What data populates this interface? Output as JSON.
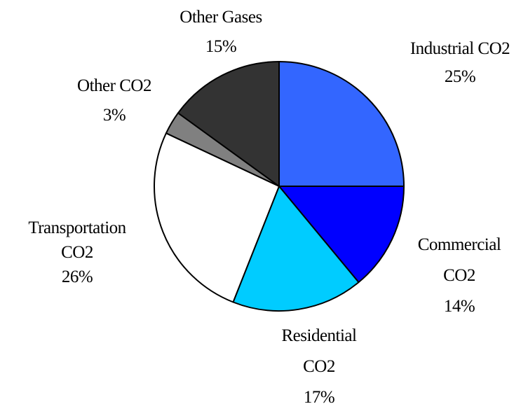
{
  "chart_data": {
    "type": "pie",
    "categories": [
      "Industrial CO2",
      "Commercial CO2",
      "Residential CO2",
      "Transportation CO2",
      "Other CO2",
      "Other Gases"
    ],
    "values": [
      25,
      14,
      17,
      26,
      3,
      15
    ],
    "value_labels": [
      "25%",
      "14%",
      "17%",
      "26%",
      "3%",
      "15%"
    ],
    "colors": [
      "#3366ff",
      "#0000ff",
      "#00ccff",
      "#ffffff",
      "#808080",
      "#333333"
    ]
  }
}
